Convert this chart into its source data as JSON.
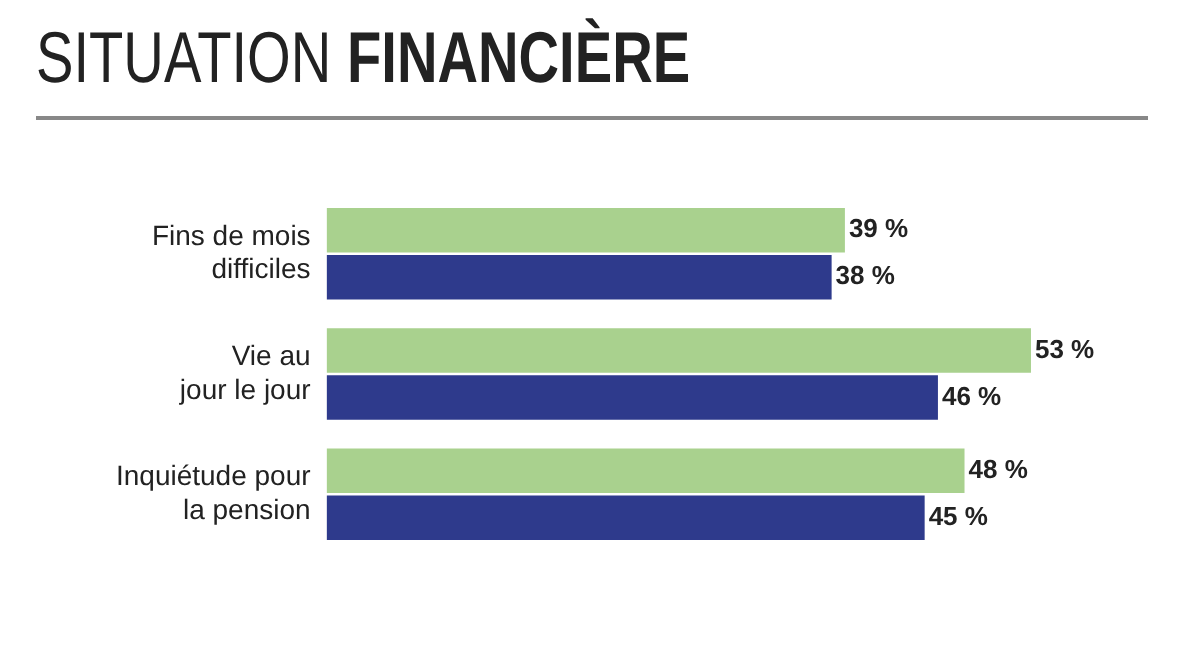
{
  "chart_data": {
    "type": "bar",
    "orientation": "horizontal",
    "title": "SITUATION FINANCIÈRE",
    "categories": [
      "Fins de mois\ndifficiles",
      "Vie au\njour le jour",
      "Inquiétude pour\nla pension"
    ],
    "series": [
      {
        "color": "#a9d18e",
        "values": [
          39,
          53,
          48
        ],
        "value_labels": [
          "39 %",
          "53 %",
          "48 %"
        ]
      },
      {
        "color": "#2e3a8c",
        "values": [
          38,
          46,
          45
        ],
        "value_labels": [
          "38 %",
          "46 %",
          "45 %"
        ]
      }
    ],
    "grid": false,
    "legend": false,
    "tick_labels": "y"
  }
}
